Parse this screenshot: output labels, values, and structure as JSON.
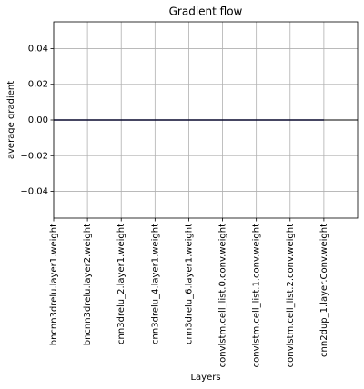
{
  "chart_data": {
    "type": "line",
    "title": "Gradient flow",
    "x_label": "Layers",
    "y_label": "average gradient",
    "categories": [
      "bncnn3drelu.layer1.weight",
      "bncnn3drelu.layer2.weight",
      "cnn3drelu_2.layer1.weight",
      "cnn3drelu_4.layer1.weight",
      "cnn3drelu_6.layer1.weight",
      "convlstm.cell_list.0.conv.weight",
      "convlstm.cell_list.1.conv.weight",
      "convlstm.cell_list.2.conv.weight",
      "cnn2dup_1.layer.Conv.weight"
    ],
    "series": [
      {
        "color": "#1c1c8c",
        "values": [
          0,
          0,
          0,
          0,
          0,
          0,
          0,
          0,
          0
        ]
      }
    ],
    "hline": {
      "y": 0,
      "color": "#000000"
    },
    "xlim": [
      0,
      9
    ],
    "ylim": [
      -0.055,
      0.055
    ],
    "yticks": [
      {
        "value": -0.04,
        "label": "−0.04"
      },
      {
        "value": -0.02,
        "label": "−0.02"
      },
      {
        "value": 0,
        "label": "0.00"
      },
      0.02,
      0.04
    ],
    "grid": true
  }
}
